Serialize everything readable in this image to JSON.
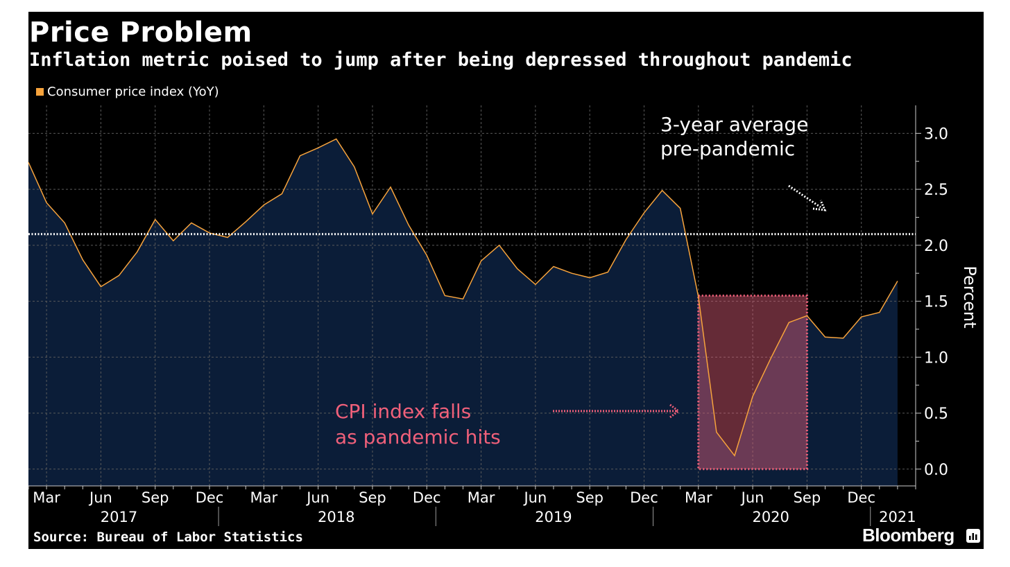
{
  "header": {
    "title": "Price Problem",
    "subtitle": "Inflation metric poised to jump after being depressed throughout pandemic"
  },
  "legend": {
    "label": "Consumer price index (YoY)",
    "color": "#f7a33c"
  },
  "footer": {
    "source": "Source: Bureau of Labor Statistics",
    "brand": "Bloomberg",
    "brand_icon": "bloomberg-chart-icon"
  },
  "annotations": {
    "avg_line1": "3-year average",
    "avg_line2": "pre-pandemic",
    "fall_line1": "CPI index falls",
    "fall_line2": "as pandemic hits"
  },
  "colors": {
    "background": "#000000",
    "area_fill": "#0b1d38",
    "line": "#f7a33c",
    "highlight_border": "#f0607a",
    "highlight_fill": "#e0607a",
    "highlight_text": "#f0607a",
    "average_line": "#ffffff"
  },
  "chart_data": {
    "type": "area",
    "title": "Price Problem",
    "subtitle": "Inflation metric poised to jump after being depressed throughout pandemic",
    "ylabel": "Percent",
    "ylim": [
      -0.15,
      3.25
    ],
    "yticks": [
      0.0,
      0.5,
      1.0,
      1.5,
      2.0,
      2.5,
      3.0
    ],
    "ytick_labels": [
      "0.0",
      "0.5",
      "1.0",
      "1.5",
      "2.0",
      "2.5",
      "3.0"
    ],
    "xlim": [
      "2017-02",
      "2021-03"
    ],
    "month_ticks": [
      {
        "date": "2017-03",
        "label": "Mar"
      },
      {
        "date": "2017-06",
        "label": "Jun"
      },
      {
        "date": "2017-09",
        "label": "Sep"
      },
      {
        "date": "2017-12",
        "label": "Dec"
      },
      {
        "date": "2018-03",
        "label": "Mar"
      },
      {
        "date": "2018-06",
        "label": "Jun"
      },
      {
        "date": "2018-09",
        "label": "Sep"
      },
      {
        "date": "2018-12",
        "label": "Dec"
      },
      {
        "date": "2019-03",
        "label": "Mar"
      },
      {
        "date": "2019-06",
        "label": "Jun"
      },
      {
        "date": "2019-09",
        "label": "Sep"
      },
      {
        "date": "2019-12",
        "label": "Dec"
      },
      {
        "date": "2020-03",
        "label": "Mar"
      },
      {
        "date": "2020-06",
        "label": "Jun"
      },
      {
        "date": "2020-09",
        "label": "Sep"
      },
      {
        "date": "2020-12",
        "label": "Dec"
      }
    ],
    "year_labels": [
      {
        "date": "2017-07",
        "label": "2017"
      },
      {
        "date": "2018-07",
        "label": "2018"
      },
      {
        "date": "2019-07",
        "label": "2019"
      },
      {
        "date": "2020-07",
        "label": "2020"
      },
      {
        "date": "2021-02",
        "label": "2021"
      }
    ],
    "year_dividers": [
      "2017-12",
      "2018-12",
      "2019-12",
      "2020-12"
    ],
    "grid": true,
    "legend_position": "top-left",
    "series": [
      {
        "name": "Consumer price index (YoY)",
        "x": [
          "2017-02",
          "2017-03",
          "2017-04",
          "2017-05",
          "2017-06",
          "2017-07",
          "2017-08",
          "2017-09",
          "2017-10",
          "2017-11",
          "2017-12",
          "2018-01",
          "2018-02",
          "2018-03",
          "2018-04",
          "2018-05",
          "2018-06",
          "2018-07",
          "2018-08",
          "2018-09",
          "2018-10",
          "2018-11",
          "2018-12",
          "2019-01",
          "2019-02",
          "2019-03",
          "2019-04",
          "2019-05",
          "2019-06",
          "2019-07",
          "2019-08",
          "2019-09",
          "2019-10",
          "2019-11",
          "2019-12",
          "2020-01",
          "2020-02",
          "2020-03",
          "2020-04",
          "2020-05",
          "2020-06",
          "2020-07",
          "2020-08",
          "2020-09",
          "2020-10",
          "2020-11",
          "2020-12",
          "2021-01",
          "2021-02"
        ],
        "values": [
          2.74,
          2.38,
          2.2,
          1.87,
          1.63,
          1.73,
          1.94,
          2.23,
          2.04,
          2.2,
          2.11,
          2.07,
          2.21,
          2.36,
          2.46,
          2.8,
          2.87,
          2.95,
          2.7,
          2.28,
          2.52,
          2.18,
          1.91,
          1.55,
          1.52,
          1.86,
          2.0,
          1.79,
          1.65,
          1.81,
          1.75,
          1.71,
          1.76,
          2.05,
          2.29,
          2.49,
          2.33,
          1.54,
          0.33,
          0.12,
          0.65,
          0.99,
          1.31,
          1.37,
          1.18,
          1.17,
          1.36,
          1.4,
          1.68
        ]
      }
    ],
    "reference_line": {
      "value": 2.1,
      "style": "dotted"
    },
    "highlight_region": {
      "x_start": "2020-03",
      "x_end": "2020-09",
      "y_start": 0.0,
      "y_end": 1.55
    }
  }
}
